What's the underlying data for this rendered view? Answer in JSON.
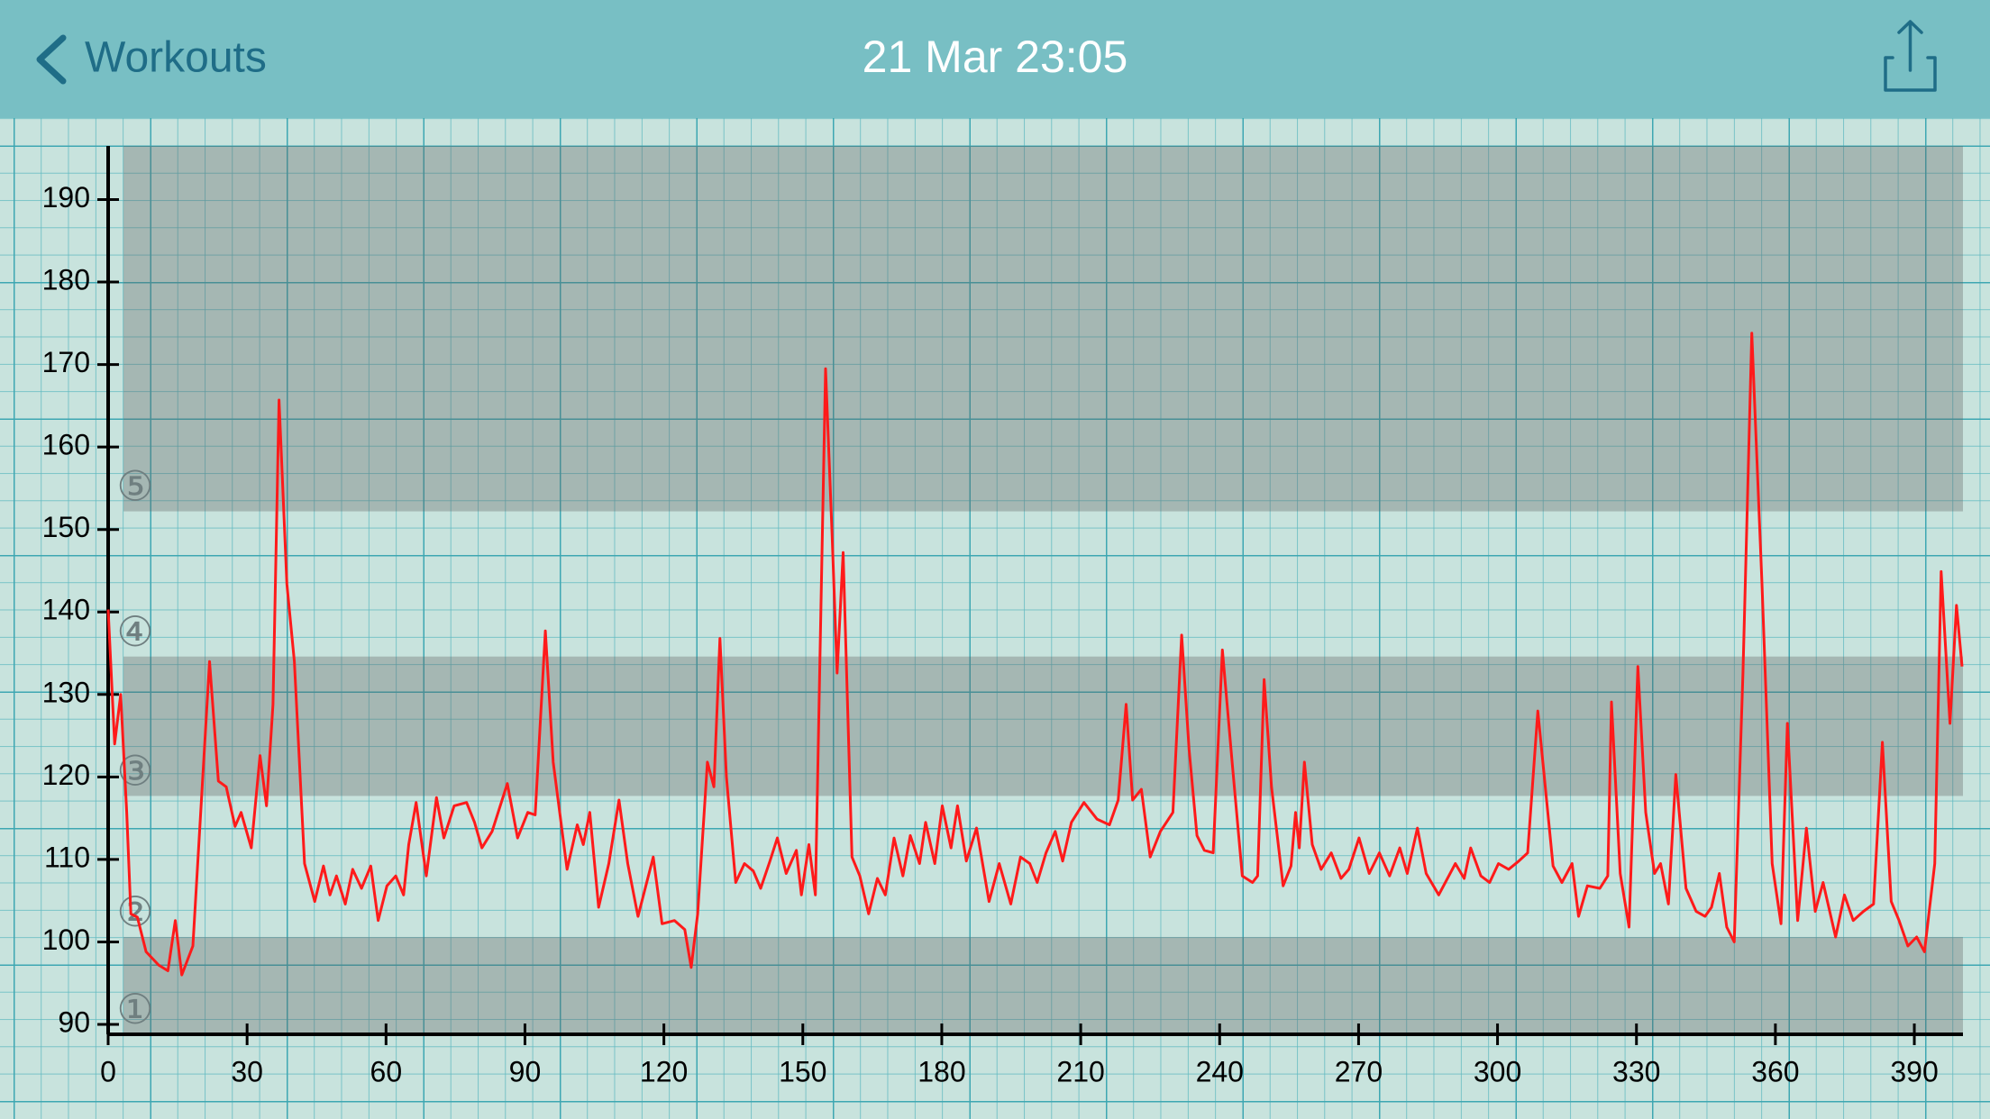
{
  "nav": {
    "back": "Workouts",
    "title": "21 Mar 23:05"
  },
  "chart_data": {
    "type": "line",
    "xlim": [
      0,
      400.5
    ],
    "xticks": [
      0,
      30,
      60,
      90,
      120,
      150,
      180,
      210,
      240,
      270,
      300,
      330,
      360,
      390
    ],
    "ylim": [
      88.8,
      196.5
    ],
    "yticks": [
      90,
      100,
      110,
      120,
      130,
      140,
      150,
      160,
      170,
      180,
      190
    ],
    "zones": [
      {
        "label": "①",
        "from": 88.8,
        "to": 100.6,
        "shaded": true
      },
      {
        "label": "②",
        "from": 100.6,
        "to": 117.7,
        "shaded": false
      },
      {
        "label": "③",
        "from": 117.7,
        "to": 134.6,
        "shaded": true
      },
      {
        "label": "④",
        "from": 134.6,
        "to": 152.2,
        "shaded": false
      },
      {
        "label": "⑤",
        "from": 152.2,
        "to": 196.5,
        "shaded": true
      }
    ],
    "series": [
      {
        "color": "#ff1a1a",
        "x": [
          0,
          1.4,
          2.7,
          4,
          4.9,
          6.3,
          8.2,
          10.9,
          12.9,
          14.5,
          15.9,
          18.3,
          21.9,
          23.8,
          25.5,
          27.4,
          28.7,
          30.9,
          32.8,
          34.2,
          35.6,
          36.9,
          38.6,
          40.2,
          42.4,
          44.6,
          46.5,
          47.9,
          49.3,
          51.2,
          52.8,
          54.7,
          56.7,
          58.3,
          60.2,
          62.1,
          63.8,
          64.9,
          66.5,
          68.7,
          70.9,
          72.5,
          74.7,
          77.4,
          79.1,
          80.7,
          82.9,
          86.2,
          88.4,
          90.6,
          92.2,
          94.4,
          96.1,
          99.1,
          101.3,
          102.6,
          104,
          105.9,
          108.1,
          110.3,
          112.2,
          114.4,
          117.7,
          119.6,
          122.3,
          124.5,
          125.9,
          127.3,
          129.4,
          130.8,
          132.1,
          133.5,
          135.5,
          137.4,
          139.3,
          140.9,
          142.9,
          144.5,
          146.4,
          148.6,
          149.7,
          151.3,
          152.7,
          154.9,
          156.3,
          157.4,
          158.7,
          160.6,
          162.3,
          164.2,
          166.1,
          167.8,
          169.7,
          171.6,
          173.2,
          175.2,
          176.5,
          178.5,
          180.1,
          182,
          183.4,
          185.3,
          187.5,
          190.2,
          192.4,
          194.9,
          197,
          199,
          200.6,
          202.5,
          204.5,
          206.1,
          208,
          210.7,
          213.5,
          216.2,
          218.1,
          219.8,
          221.2,
          223.1,
          225,
          227.2,
          228.5,
          229.9,
          231.8,
          233.4,
          235.1,
          236.7,
          238.6,
          240.6,
          242.7,
          244.9,
          247.1,
          248.2,
          249.6,
          251.2,
          253.7,
          255.4,
          256.4,
          257.2,
          258.3,
          260,
          261.9,
          264.1,
          266.2,
          267.9,
          270.1,
          272.3,
          274.5,
          276.7,
          278.9,
          280.5,
          282.7,
          284.6,
          287.3,
          290.9,
          292.8,
          294.2,
          296.4,
          298.3,
          300.2,
          302.4,
          304.6,
          306.5,
          308.7,
          312,
          313.9,
          316.1,
          317.5,
          319.4,
          322.1,
          323.8,
          324.6,
          326.5,
          328.4,
          330.3,
          332,
          333.9,
          335.2,
          336.9,
          338.5,
          340.7,
          342.9,
          344.8,
          346.2,
          347.9,
          349.5,
          351.1,
          353,
          354.9,
          357.1,
          359.3,
          361.2,
          362.6,
          364.8,
          366.7,
          368.6,
          370.3,
          373,
          374.9,
          376.8,
          379,
          381.2,
          383.1,
          385,
          386.7,
          388.6,
          390.5,
          392.2,
          394.4,
          395.8,
          397.7,
          399.1,
          400.3
        ],
        "values": [
          140.3,
          124,
          130,
          115.7,
          103.4,
          103,
          98.8,
          97.2,
          96.5,
          102.6,
          96,
          99.5,
          134,
          119.5,
          118.8,
          114,
          115.7,
          111.4,
          122.6,
          116.5,
          128.8,
          165.7,
          143.4,
          134,
          109.5,
          104.9,
          109.2,
          105.7,
          108,
          104.6,
          108.8,
          106.5,
          109.2,
          102.6,
          106.8,
          108,
          105.7,
          111.8,
          116.9,
          108,
          117.5,
          112.6,
          116.5,
          116.9,
          114.5,
          111.4,
          113.4,
          119.2,
          112.6,
          115.7,
          115.4,
          137.7,
          121.8,
          108.8,
          114.2,
          111.8,
          115.7,
          104.2,
          109.5,
          117.2,
          109.5,
          103.1,
          110.3,
          102.2,
          102.6,
          101.5,
          96.9,
          103.4,
          121.8,
          118.8,
          136.8,
          120,
          107.2,
          109.5,
          108.6,
          106.5,
          109.8,
          112.6,
          108.3,
          111.1,
          105.7,
          111.8,
          105.7,
          169.5,
          149.5,
          132.6,
          147.2,
          110.3,
          108,
          103.4,
          107.7,
          105.7,
          112.6,
          108,
          112.9,
          109.5,
          114.5,
          109.5,
          116.5,
          111.4,
          116.5,
          109.8,
          113.8,
          104.9,
          109.5,
          104.6,
          110.3,
          109.5,
          107.2,
          110.8,
          113.4,
          109.8,
          114.5,
          116.9,
          114.9,
          114.2,
          117.2,
          128.8,
          117.2,
          118.5,
          110.3,
          113.4,
          114.5,
          115.7,
          137.2,
          123.4,
          112.9,
          111.1,
          110.8,
          135.4,
          121.8,
          108,
          107.2,
          108,
          131.8,
          118.8,
          106.8,
          109.2,
          115.7,
          111.4,
          121.8,
          111.8,
          108.8,
          110.8,
          107.7,
          108.8,
          112.6,
          108.3,
          110.8,
          108,
          111.4,
          108.3,
          113.8,
          108.3,
          105.7,
          109.5,
          107.7,
          111.4,
          108,
          107.2,
          109.5,
          108.8,
          109.8,
          110.8,
          128,
          109.2,
          107.2,
          109.5,
          103.1,
          106.8,
          106.5,
          108,
          129.1,
          108.3,
          101.8,
          133.4,
          115.7,
          108.3,
          109.5,
          104.6,
          120.3,
          106.5,
          103.7,
          103.1,
          104.2,
          108.3,
          101.8,
          100,
          132.6,
          173.8,
          143.4,
          109.5,
          102.2,
          126.5,
          102.6,
          113.8,
          103.7,
          107.2,
          100.6,
          105.7,
          102.6,
          103.7,
          104.6,
          124.2,
          104.9,
          102.6,
          99.5,
          100.6,
          98.8,
          109.5,
          144.9,
          126.5,
          140.8,
          133.4
        ]
      }
    ]
  }
}
